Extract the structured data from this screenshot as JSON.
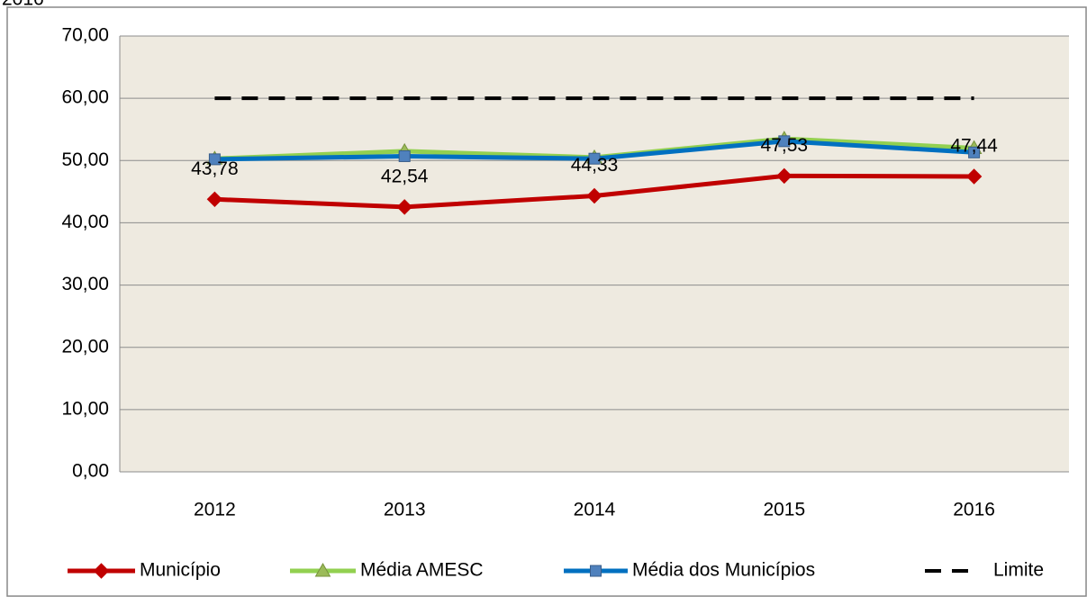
{
  "chart_data": {
    "type": "line",
    "title": "2016",
    "categories": [
      "2012",
      "2013",
      "2014",
      "2015",
      "2016"
    ],
    "series": [
      {
        "name": "Município",
        "color": "#c00000",
        "marker": "diamond",
        "values": [
          43.78,
          42.54,
          44.33,
          47.53,
          47.44
        ],
        "value_labels": [
          "43,78",
          "42,54",
          "44,33",
          "47,53",
          "47,44"
        ]
      },
      {
        "name": "Média AMESC",
        "color": "#92d050",
        "marker": "triangle",
        "values": [
          50.3,
          51.5,
          50.5,
          53.5,
          52.0
        ]
      },
      {
        "name": "Média dos Municípios",
        "color": "#0070c0",
        "marker": "square",
        "values": [
          50.2,
          50.7,
          50.3,
          53.1,
          51.3
        ]
      },
      {
        "name": "Limite",
        "color": "#000000",
        "dashed": true,
        "values": [
          60,
          60,
          60,
          60,
          60
        ]
      }
    ],
    "ylim": [
      0,
      70
    ],
    "yticks": [
      {
        "value": 0,
        "label": "0,00"
      },
      {
        "value": 10,
        "label": "10,00"
      },
      {
        "value": 20,
        "label": "20,00"
      },
      {
        "value": 30,
        "label": "30,00"
      },
      {
        "value": 40,
        "label": "40,00"
      },
      {
        "value": 50,
        "label": "50,00"
      },
      {
        "value": 60,
        "label": "60,00"
      },
      {
        "value": 70,
        "label": "70,00"
      }
    ],
    "grid": true,
    "legend": "bottom"
  }
}
